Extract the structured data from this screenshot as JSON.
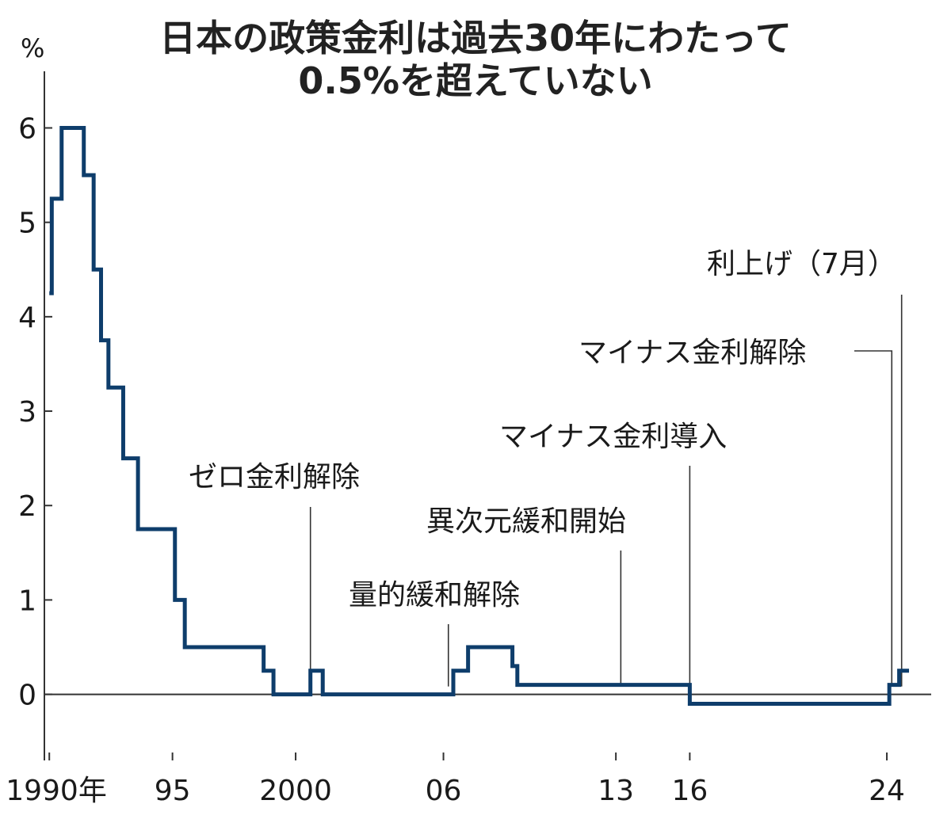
{
  "chart_data": {
    "type": "line",
    "title_lines": [
      "日本の政策金利は過去30年にわたって",
      "0.5%を超えていない"
    ],
    "y_unit": "%",
    "ylim": [
      -0.7,
      6.6
    ],
    "xlim": [
      1989.8,
      2025.8
    ],
    "y_ticks": [
      0,
      1,
      2,
      3,
      4,
      5,
      6
    ],
    "y_tick_labels": [
      "0",
      "1",
      "2",
      "3",
      "4",
      "5",
      "6"
    ],
    "x_ticks": [
      {
        "x": 1990,
        "label": "1990年"
      },
      {
        "x": 1995,
        "label": "95"
      },
      {
        "x": 2000,
        "label": "2000"
      },
      {
        "x": 2006,
        "label": "06"
      },
      {
        "x": 2013,
        "label": "13"
      },
      {
        "x": 2016,
        "label": "16"
      },
      {
        "x": 2024,
        "label": "24"
      }
    ],
    "grid": false,
    "series": [
      {
        "color": "#0e3d6b",
        "step": true,
        "points": [
          [
            1990.0,
            4.25
          ],
          [
            1990.1,
            5.25
          ],
          [
            1990.5,
            6.0
          ],
          [
            1991.4,
            5.5
          ],
          [
            1991.8,
            4.5
          ],
          [
            1992.1,
            3.75
          ],
          [
            1992.4,
            3.25
          ],
          [
            1993.0,
            2.5
          ],
          [
            1993.6,
            1.75
          ],
          [
            1995.1,
            1.0
          ],
          [
            1995.5,
            0.5
          ],
          [
            1998.7,
            0.25
          ],
          [
            1999.1,
            0.0
          ],
          [
            2000.6,
            0.25
          ],
          [
            2001.1,
            0.0
          ],
          [
            2006.4,
            0.25
          ],
          [
            2007.0,
            0.5
          ],
          [
            2008.8,
            0.3
          ],
          [
            2009.0,
            0.1
          ],
          [
            2016.0,
            -0.1
          ],
          [
            2024.1,
            0.1
          ],
          [
            2024.5,
            0.25
          ],
          [
            2024.9,
            0.25
          ]
        ]
      }
    ],
    "annotations": [
      {
        "x": 2000.6,
        "label": "ゼロ金利解除"
      },
      {
        "x": 2006.2,
        "label": "量的緩和解除"
      },
      {
        "x": 2013.2,
        "label": "異次元緩和開始"
      },
      {
        "x": 2016.0,
        "label": "マイナス金利導入"
      },
      {
        "x": 2024.2,
        "label": "マイナス金利解除"
      },
      {
        "x": 2024.6,
        "label": "利上げ（7月）"
      }
    ]
  }
}
